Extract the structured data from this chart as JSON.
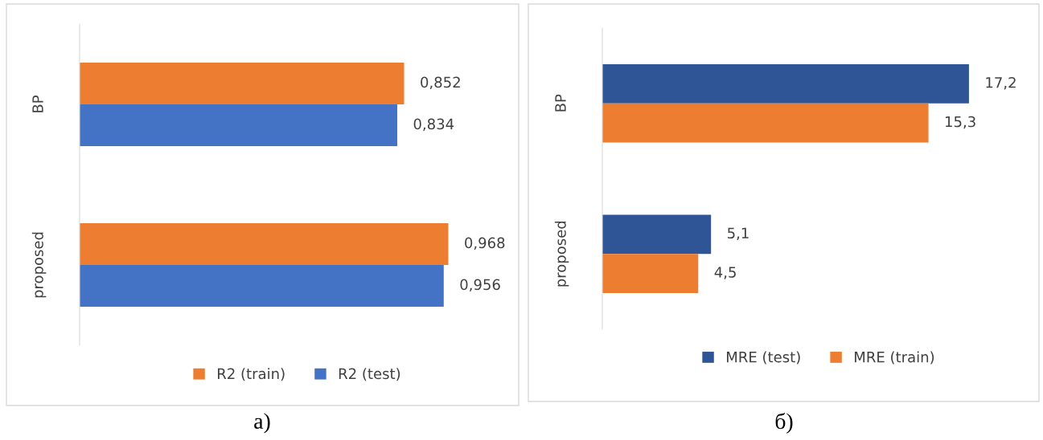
{
  "chart_data": [
    {
      "type": "bar",
      "orientation": "horizontal",
      "categories": [
        "BP",
        "proposed"
      ],
      "tick_labels": "y",
      "legend": "bottom",
      "annotations": [
        "а)"
      ],
      "series": [
        {
          "name": "R2 (train)",
          "color": "#ed7d31",
          "values": [
            0.852,
            0.968
          ],
          "value_labels": [
            "0,852",
            "0,968"
          ]
        },
        {
          "name": "R2 (test)",
          "color": "#4472c4",
          "values": [
            0.834,
            0.956
          ],
          "value_labels": [
            "0,834",
            "0,956"
          ]
        }
      ]
    },
    {
      "type": "bar",
      "orientation": "horizontal",
      "categories": [
        "BP",
        "proposed"
      ],
      "tick_labels": "y",
      "legend": "bottom",
      "annotations": [
        "б)"
      ],
      "series": [
        {
          "name": "MRE (test)",
          "color": "#2f5597",
          "values": [
            17.2,
            5.1
          ],
          "value_labels": [
            "17,2",
            "5,1"
          ]
        },
        {
          "name": "MRE (train)",
          "color": "#ed7d31",
          "values": [
            15.3,
            4.5
          ],
          "value_labels": [
            "15,3",
            "4,5"
          ]
        }
      ]
    }
  ]
}
